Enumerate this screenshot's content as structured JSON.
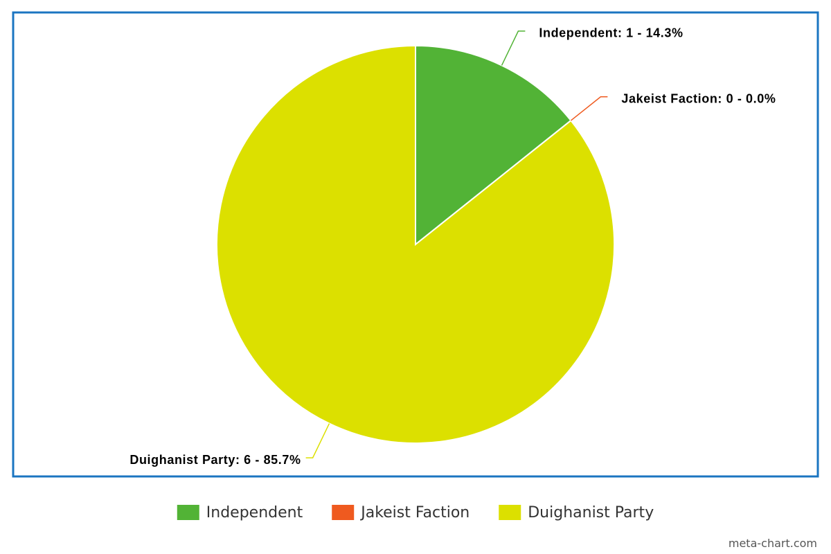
{
  "chart_data": {
    "type": "pie",
    "categories": [
      "Independent",
      "Jakeist Faction",
      "Duighanist Party"
    ],
    "values": [
      1,
      0,
      6
    ],
    "value_labels": [
      "Independent: 1 - 14.3%",
      "Jakeist Faction: 0 - 0.0%",
      "Duighanist Party: 6 - 85.7%"
    ],
    "colors": [
      "#52b336",
      "#ef5a1f",
      "#dce000"
    ],
    "legend": "bottom",
    "credit": "meta-chart.com"
  }
}
